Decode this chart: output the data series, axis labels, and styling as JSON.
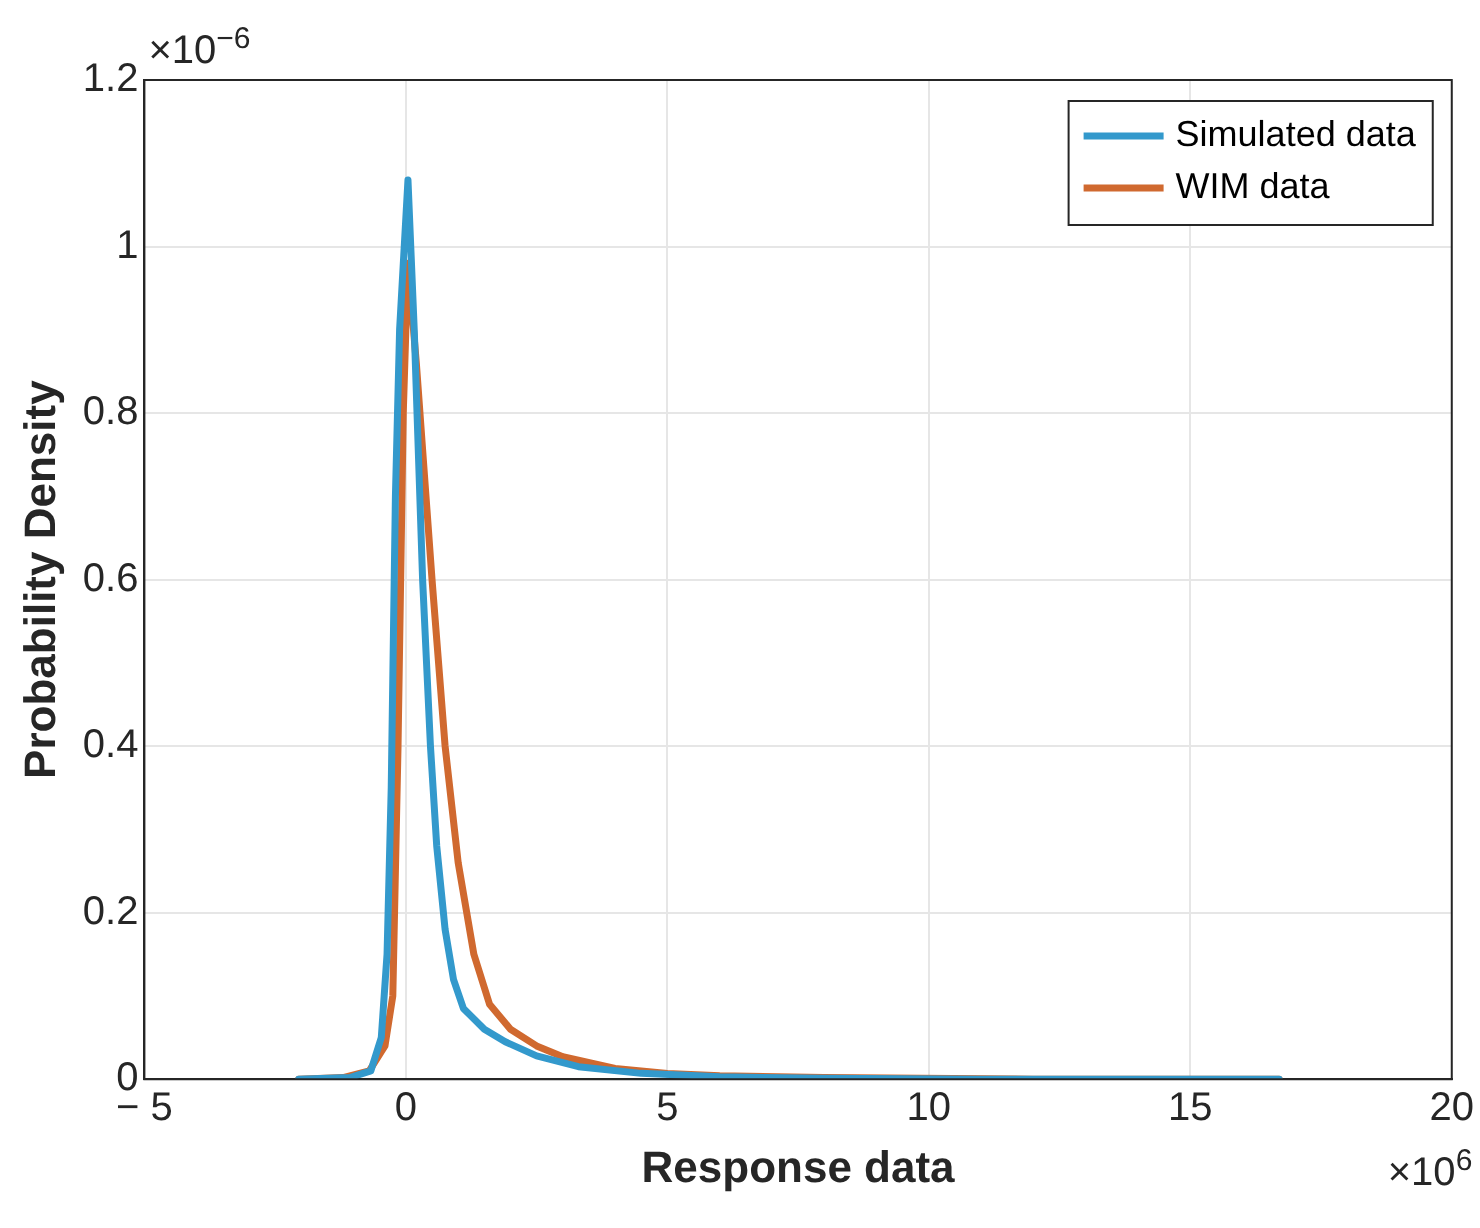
{
  "chart_data": {
    "type": "line",
    "xlabel": "Response data",
    "ylabel": "Probability Density",
    "annotations": [
      "×10$^{−6}$",
      "×10$^{6}$"
    ],
    "xlim": [
      -5,
      20
    ],
    "xticks": [
      {
        "value": -5,
        "label": "− 5"
      },
      0,
      5,
      10,
      15,
      20
    ],
    "ylim": [
      0,
      1.2
    ],
    "yticks": [
      0,
      0.2,
      0.4,
      0.6,
      0.8,
      1,
      1.2
    ],
    "grid": true,
    "legend": "top right",
    "marker": "none",
    "line_style": "solid",
    "series": [
      {
        "name": "Simulated data",
        "color": "#3399cc",
        "x": [
          -2.05,
          -1.07,
          -0.67,
          -0.47,
          -0.36,
          -0.28,
          -0.2,
          -0.12,
          0.04,
          0.16,
          0.32,
          0.47,
          0.59,
          0.75,
          0.91,
          1.1,
          1.5,
          1.9,
          2.5,
          3.3,
          4.5,
          6,
          8,
          11,
          16.7
        ],
        "values": [
          0,
          0.002,
          0.01,
          0.05,
          0.15,
          0.35,
          0.7,
          0.9,
          1.08,
          0.9,
          0.6,
          0.4,
          0.28,
          0.18,
          0.12,
          0.085,
          0.06,
          0.045,
          0.028,
          0.015,
          0.007,
          0.003,
          0.001,
          0,
          0
        ]
      },
      {
        "name": "WIM data",
        "color": "#d0692f",
        "x": [
          -2.05,
          -1.2,
          -0.7,
          -0.4,
          -0.25,
          -0.15,
          -0.05,
          0.04,
          0.2,
          0.5,
          0.75,
          1,
          1.3,
          1.6,
          2,
          2.5,
          3,
          4,
          5,
          6,
          8,
          12,
          16.7
        ],
        "values": [
          0,
          0.002,
          0.01,
          0.04,
          0.1,
          0.4,
          0.8,
          0.98,
          0.86,
          0.6,
          0.4,
          0.26,
          0.15,
          0.09,
          0.06,
          0.04,
          0.027,
          0.013,
          0.007,
          0.004,
          0.002,
          0,
          0
        ]
      }
    ]
  }
}
